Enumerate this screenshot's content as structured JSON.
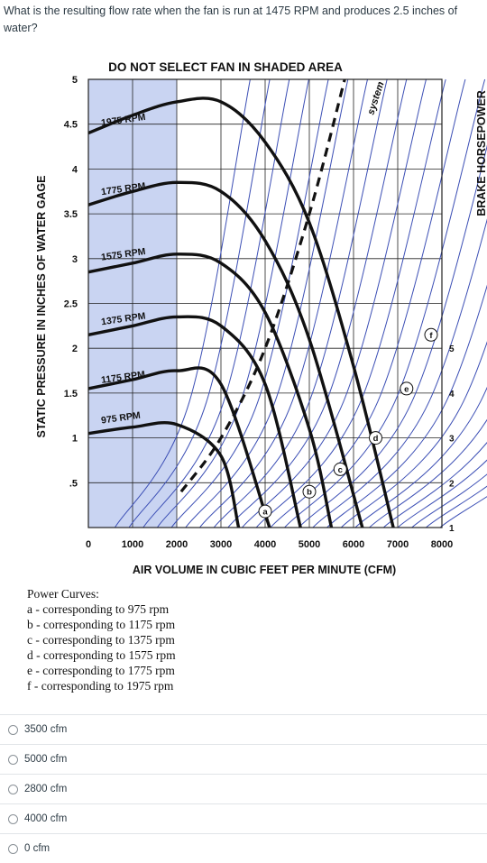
{
  "question": "What is the resulting flow rate when the fan is run at 1475 RPM and produces 2.5 inches of water?",
  "figure": {
    "title": "DO NOT SELECT FAN IN SHADED AREA",
    "xlabel": "AIR VOLUME IN CUBIC FEET PER MINUTE (CFM)",
    "ylabel": "STATIC PRESSURE IN INCHES OF WATER GAGE",
    "y2label": "BRAKE HORSEPOWER",
    "system_label": "system",
    "x_ticks": [
      "0",
      "1000",
      "2000",
      "3000",
      "4000",
      "5000",
      "6000",
      "7000",
      "8000"
    ],
    "y_ticks": [
      "5",
      "4.5",
      "4",
      "3.5",
      "3",
      "2.5",
      "2",
      "1.5",
      "1",
      ".5"
    ],
    "bhp_ticks": [
      "5",
      "4",
      "3",
      "2",
      "1"
    ],
    "rpm_labels": [
      "1975 RPM",
      "1775 RPM",
      "1575 RPM",
      "1375 RPM",
      "1175 RPM",
      "975 RPM"
    ],
    "point_labels": [
      "a",
      "b",
      "c",
      "d",
      "e",
      "f"
    ],
    "colors": {
      "shade": "#c9d4f2",
      "grid_line": "#3c4fb5",
      "curve": "#111111",
      "system": "#111111"
    }
  },
  "chart_data": {
    "type": "line",
    "title": "DO NOT SELECT FAN IN SHADED AREA",
    "xlabel": "AIR VOLUME IN CUBIC FEET PER MINUTE (CFM)",
    "ylabel": "STATIC PRESSURE IN INCHES OF WATER GAGE",
    "xlim": [
      0,
      8000
    ],
    "ylim": [
      0,
      5
    ],
    "series": [
      {
        "name": "1975 RPM",
        "x": [
          0,
          1000,
          2000,
          3000,
          4000,
          5000,
          6000,
          6900
        ],
        "y": [
          4.4,
          4.6,
          4.75,
          4.75,
          4.3,
          3.4,
          1.8,
          0
        ]
      },
      {
        "name": "1775 RPM",
        "x": [
          0,
          1000,
          2000,
          3000,
          4000,
          5000,
          6200
        ],
        "y": [
          3.6,
          3.75,
          3.85,
          3.75,
          3.2,
          2.1,
          0
        ]
      },
      {
        "name": "1575 RPM",
        "x": [
          0,
          1000,
          2000,
          3000,
          4000,
          5000,
          5500
        ],
        "y": [
          2.85,
          2.95,
          3.05,
          2.95,
          2.4,
          1.1,
          0
        ]
      },
      {
        "name": "1375 RPM",
        "x": [
          0,
          1000,
          2000,
          3000,
          4000,
          4800
        ],
        "y": [
          2.15,
          2.25,
          2.35,
          2.25,
          1.6,
          0
        ]
      },
      {
        "name": "1175 RPM",
        "x": [
          0,
          1000,
          2000,
          3000,
          4100
        ],
        "y": [
          1.55,
          1.65,
          1.75,
          1.6,
          0
        ]
      },
      {
        "name": "975 RPM",
        "x": [
          0,
          1000,
          2000,
          3000,
          3400
        ],
        "y": [
          1.05,
          1.12,
          1.15,
          0.8,
          0
        ]
      },
      {
        "name": "system",
        "x": [
          2100,
          3000,
          4000,
          5000,
          5800
        ],
        "y": [
          0.4,
          1.0,
          2.0,
          3.5,
          5.0
        ]
      }
    ]
  },
  "power_curves": {
    "heading": "Power Curves:",
    "items": [
      "a - corresponding to 975 rpm",
      "b - corresponding to 1175 rpm",
      "c - corresponding to 1375 rpm",
      "d - corresponding to 1575 rpm",
      "e - corresponding to 1775 rpm",
      "f - corresponding to 1975 rpm"
    ]
  },
  "options": [
    "3500 cfm",
    "5000 cfm",
    "2800 cfm",
    "4000 cfm",
    "0 cfm"
  ]
}
